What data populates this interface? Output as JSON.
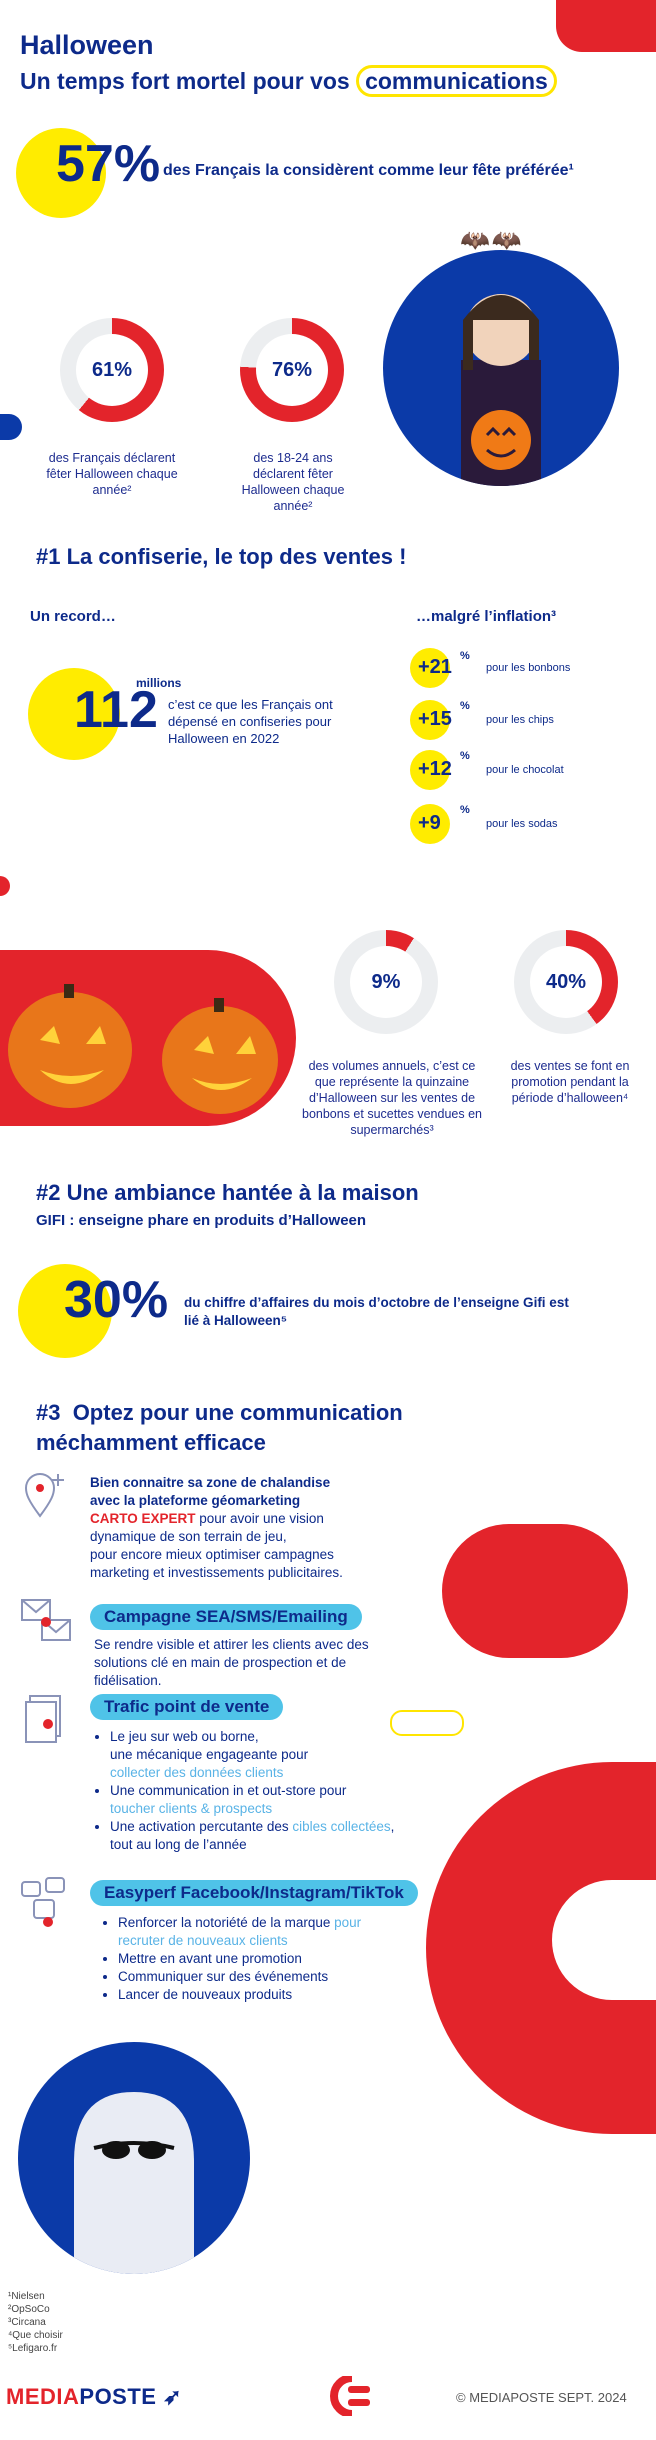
{
  "header": {
    "title": "Halloween",
    "subtitle_prefix": "Un temps fort mortel pour vos",
    "subtitle_highlight": "communications"
  },
  "stat_57": {
    "value": "57",
    "unit": "%",
    "text": "des Français la considèrent comme leur fête préférée¹"
  },
  "donuts_top": [
    {
      "value": "61%",
      "fraction": 0.61,
      "caption": "des Français déclarent fêter Halloween chaque année²"
    },
    {
      "value": "76%",
      "fraction": 0.76,
      "caption": "des 18-24 ans déclarent fêter Halloween chaque année²"
    }
  ],
  "section1": {
    "title": "#1 La confiserie, le top des ventes !",
    "record_label": "Un record…",
    "inflation_label": "…malgré l’inflation³",
    "record_value": "112",
    "record_unit": "millions",
    "record_text": "c’est ce que les Français ont dépensé en confiseries pour Halloween en 2022",
    "inflation": [
      {
        "value": "+21",
        "unit": "%",
        "label": "pour les bonbons"
      },
      {
        "value": "+15",
        "unit": "%",
        "label": "pour les chips"
      },
      {
        "value": "+12",
        "unit": "%",
        "label": "pour le chocolat"
      },
      {
        "value": "+9",
        "unit": "%",
        "label": "pour les sodas"
      }
    ]
  },
  "donuts_mid": [
    {
      "value": "9%",
      "fraction": 0.09,
      "caption": "des volumes annuels, c’est ce que représente la quinzaine d’Halloween sur les ventes de bonbons et sucettes vendues en supermarchés³"
    },
    {
      "value": "40%",
      "fraction": 0.4,
      "caption": "des ventes se font en promotion pendant la période d’halloween⁴"
    }
  ],
  "section2": {
    "title": "#2 Une ambiance hantée à la maison",
    "subtitle": "GIFI : enseigne phare en produits d’Halloween",
    "value": "30",
    "unit": "%",
    "text": "du chiffre d’affaires du mois d’octobre de l’enseigne Gifi est lié à Halloween⁵"
  },
  "section3": {
    "title_line1": "#3  Optez pour une communication",
    "title_line2": "méchamment efficace",
    "carto": {
      "line1": "Bien connaitre sa zone de chalandise",
      "line2": "avec la plateforme géomarketing",
      "brand": "CARTO EXPERT",
      "rest1": " pour avoir une vision",
      "rest2": "dynamique de son terrain de jeu,",
      "rest3": "pour encore mieux optimiser campagnes",
      "rest4": "marketing et investissements publicitaires."
    },
    "sea": {
      "pill": "Campagne SEA/SMS/Emailing",
      "text": "Se rendre visible et attirer les clients avec des solutions clé en main de prospection et de fidélisation."
    },
    "trafic": {
      "pill": "Trafic point de vente",
      "b1_a": "Le jeu sur web ou borne,",
      "b1_b": "une mécanique engageante pour",
      "b1_c": "collecter des données clients",
      "b2_a": "Une communication in et out-store pour",
      "b2_b": "toucher clients & prospects",
      "b3_a": "Une activation percutante des ",
      "b3_b": "cibles collectées",
      "b3_c": ",",
      "b3_d": "tout au long de l’année"
    },
    "easyperf": {
      "pill": "Easyperf Facebook/Instagram/TikTok",
      "b1_a": "Renforcer la notoriété de la marque ",
      "b1_b": "pour",
      "b1_c": "recruter de nouveaux clients",
      "b2": "Mettre en avant une promotion",
      "b3": "Communiquer sur des événements",
      "b4": "Lancer de nouveaux produits"
    }
  },
  "footnotes": [
    "¹Nielsen",
    "²OpSoCo",
    "³Circana",
    "⁴Que choisir",
    "⁵Lefigaro.fr"
  ],
  "footer": {
    "logo_media": "MEDIA",
    "logo_poste": "POSTE",
    "copyright": "© MEDIAPOSTE SEPT. 2024"
  },
  "colors": {
    "navy": "#0d2a8a",
    "red": "#e3242b",
    "yellow": "#ffec00",
    "blue": "#0b3aa8",
    "light_blue": "#4fc3e8"
  }
}
